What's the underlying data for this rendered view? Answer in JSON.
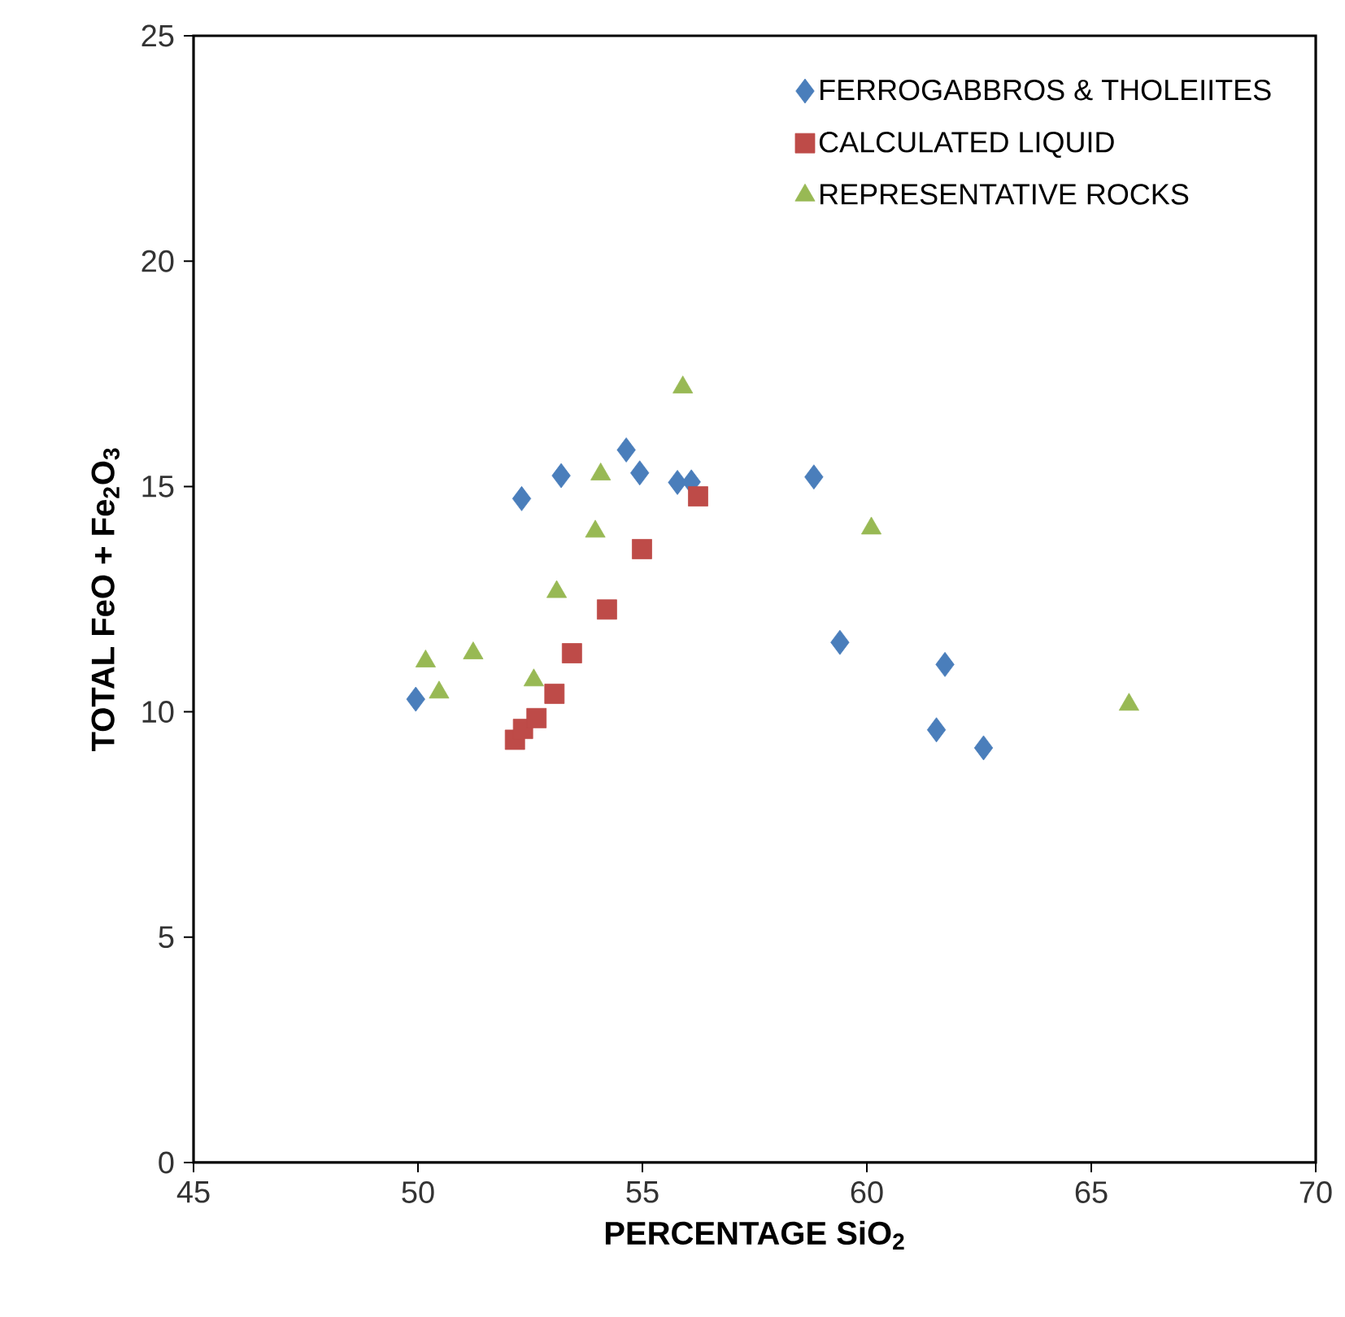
{
  "chart_data": {
    "type": "scatter",
    "xlabel": "PERCENTAGE SiO$_{2}$",
    "ylabel": "TOTAL FeO + Fe$_{2}$O$_{3}$",
    "xlim": [
      45,
      70
    ],
    "ylim": [
      0,
      25
    ],
    "xticks": [
      45,
      50,
      55,
      60,
      65,
      70
    ],
    "yticks": [
      0,
      5,
      10,
      15,
      20,
      25
    ],
    "grid": false,
    "legend": "top right",
    "series": [
      {
        "name": "FERROGABBROS & THOLEIITES",
        "color": "#4a7ebb",
        "marker": "diamond",
        "x": [
          49.95,
          52.31,
          53.19,
          54.64,
          54.94,
          55.78,
          56.09,
          58.82,
          59.4,
          61.74,
          61.55,
          62.6
        ],
        "values": [
          10.28,
          14.73,
          15.24,
          15.81,
          15.3,
          15.09,
          15.1,
          15.21,
          11.54,
          11.05,
          9.6,
          9.2
        ]
      },
      {
        "name": "CALCULATED LIQUID",
        "color": "#be4b48",
        "marker": "square",
        "x": [
          52.16,
          52.34,
          52.64,
          53.04,
          53.43,
          54.21,
          54.99,
          56.24
        ],
        "values": [
          9.38,
          9.62,
          9.86,
          10.4,
          11.3,
          12.27,
          13.61,
          14.78
        ]
      },
      {
        "name": "REPRESENTATIVE ROCKS",
        "color": "#98b954",
        "marker": "triangle",
        "x": [
          50.17,
          50.47,
          51.23,
          52.58,
          53.09,
          53.95,
          54.07,
          55.9,
          60.1,
          65.84
        ],
        "values": [
          11.12,
          10.43,
          11.3,
          10.7,
          12.66,
          14.0,
          15.27,
          17.2,
          14.07,
          10.16
        ]
      }
    ]
  }
}
